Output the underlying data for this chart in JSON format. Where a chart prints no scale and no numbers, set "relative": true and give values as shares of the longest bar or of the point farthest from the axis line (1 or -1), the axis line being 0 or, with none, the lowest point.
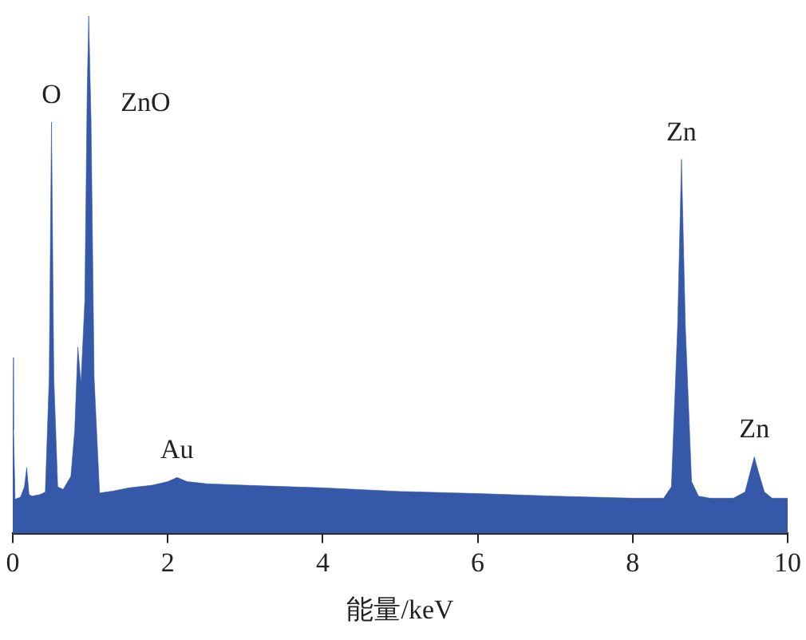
{
  "chart_data": {
    "type": "area",
    "relative": true,
    "xlabel": "能量/keV",
    "xlim": [
      0,
      10
    ],
    "xticks": [
      0,
      2,
      4,
      6,
      8,
      10
    ],
    "grid": false,
    "legend": false,
    "marker": "none",
    "series": [
      {
        "color": "#3558a8",
        "x": [
          0,
          0.01,
          0.03,
          0.1,
          0.15,
          0.18,
          0.21,
          0.25,
          0.35,
          0.42,
          0.47,
          0.5,
          0.53,
          0.58,
          0.65,
          0.75,
          0.8,
          0.84,
          0.88,
          0.93,
          0.96,
          0.98,
          1.01,
          1.05,
          1.12,
          1.3,
          1.5,
          1.8,
          2.0,
          2.12,
          2.25,
          2.5,
          3,
          4,
          5,
          6,
          7,
          8,
          8.4,
          8.5,
          8.58,
          8.63,
          8.68,
          8.76,
          8.85,
          9,
          9.3,
          9.45,
          9.52,
          9.57,
          9.62,
          9.7,
          9.8,
          10
        ],
        "values": [
          0.34,
          0.2,
          0.066,
          0.07,
          0.09,
          0.127,
          0.075,
          0.072,
          0.075,
          0.08,
          0.3,
          0.795,
          0.3,
          0.09,
          0.085,
          0.11,
          0.2,
          0.36,
          0.29,
          0.45,
          0.85,
          1,
          0.8,
          0.3,
          0.078,
          0.082,
          0.088,
          0.093,
          0.1,
          0.108,
          0.1,
          0.096,
          0.093,
          0.088,
          0.081,
          0.077,
          0.072,
          0.068,
          0.068,
          0.09,
          0.4,
          0.723,
          0.4,
          0.1,
          0.072,
          0.068,
          0.068,
          0.08,
          0.12,
          0.148,
          0.12,
          0.08,
          0.068,
          0.068
        ]
      }
    ],
    "annotations": [
      {
        "text": "O",
        "x": 0.5,
        "y": 0.795
      },
      {
        "text": "ZnO",
        "x": 0.98,
        "y": 1
      },
      {
        "text": "Au",
        "x": 2.12,
        "y": 0.108
      },
      {
        "text": "Zn",
        "x": 8.63,
        "y": 0.723
      },
      {
        "text": "Zn",
        "x": 9.57,
        "y": 0.148
      }
    ]
  }
}
